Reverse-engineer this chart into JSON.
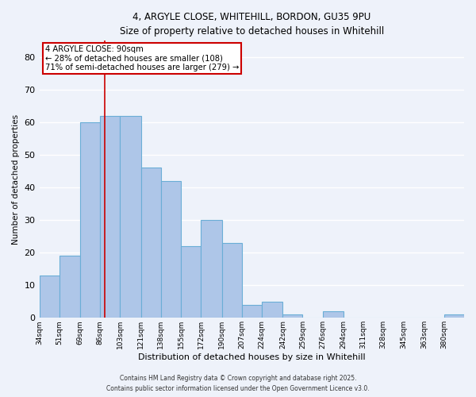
{
  "title_line1": "4, ARGYLE CLOSE, WHITEHILL, BORDON, GU35 9PU",
  "title_line2": "Size of property relative to detached houses in Whitehill",
  "xlabel": "Distribution of detached houses by size in Whitehill",
  "ylabel": "Number of detached properties",
  "bar_edges": [
    34,
    51,
    69,
    86,
    103,
    121,
    138,
    155,
    172,
    190,
    207,
    224,
    242,
    259,
    276,
    294,
    311,
    328,
    345,
    363,
    380
  ],
  "bar_heights": [
    13,
    19,
    60,
    62,
    62,
    46,
    42,
    22,
    30,
    23,
    4,
    5,
    1,
    0,
    2,
    0,
    0,
    0,
    0,
    0,
    1
  ],
  "bar_color": "#aec6e8",
  "bar_edgecolor": "#6aaed6",
  "bar_linewidth": 0.8,
  "red_line_x": 90,
  "red_line_color": "#cc0000",
  "annotation_title": "4 ARGYLE CLOSE: 90sqm",
  "annotation_line2": "← 28% of detached houses are smaller (108)",
  "annotation_line3": "71% of semi-detached houses are larger (279) →",
  "annotation_box_color": "#ffffff",
  "annotation_box_edgecolor": "#cc0000",
  "ylim": [
    0,
    85
  ],
  "yticks": [
    0,
    10,
    20,
    30,
    40,
    50,
    60,
    70,
    80
  ],
  "tick_labels": [
    "34sqm",
    "51sqm",
    "69sqm",
    "86sqm",
    "103sqm",
    "121sqm",
    "138sqm",
    "155sqm",
    "172sqm",
    "190sqm",
    "207sqm",
    "224sqm",
    "242sqm",
    "259sqm",
    "276sqm",
    "294sqm",
    "311sqm",
    "328sqm",
    "345sqm",
    "363sqm",
    "380sqm"
  ],
  "background_color": "#eef2fa",
  "grid_color": "#ffffff",
  "footer_line1": "Contains HM Land Registry data © Crown copyright and database right 2025.",
  "footer_line2": "Contains public sector information licensed under the Open Government Licence v3.0."
}
